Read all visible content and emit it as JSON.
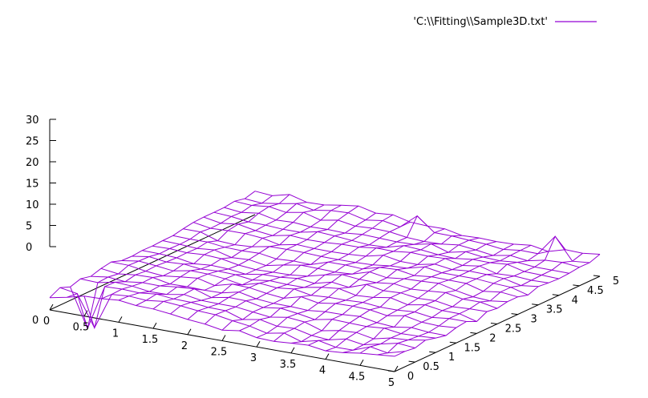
{
  "chart_data": {
    "type": "surface",
    "title": "",
    "xlabel": "",
    "ylabel": "",
    "zlabel": "",
    "legend": {
      "position": "top-right",
      "entries": [
        {
          "label": "'C:\\\\Fitting\\\\Sample3D.txt'",
          "color": "#9400d3"
        }
      ]
    },
    "xlim": [
      0,
      5
    ],
    "ylim": [
      0,
      5
    ],
    "zlim": [
      0,
      30
    ],
    "x_ticks": [
      "0",
      "0.5",
      "1",
      "1.5",
      "2",
      "2.5",
      "3",
      "3.5",
      "4",
      "4.5",
      "5"
    ],
    "y_ticks": [
      "0",
      "0.5",
      "1",
      "1.5",
      "2",
      "2.5",
      "3",
      "3.5",
      "4",
      "4.5",
      "5"
    ],
    "z_ticks": [
      "0",
      "5",
      "10",
      "15",
      "20",
      "25",
      "30"
    ],
    "grid": false,
    "grid_size": [
      21,
      21
    ],
    "surface_color": "#9400d3"
  }
}
